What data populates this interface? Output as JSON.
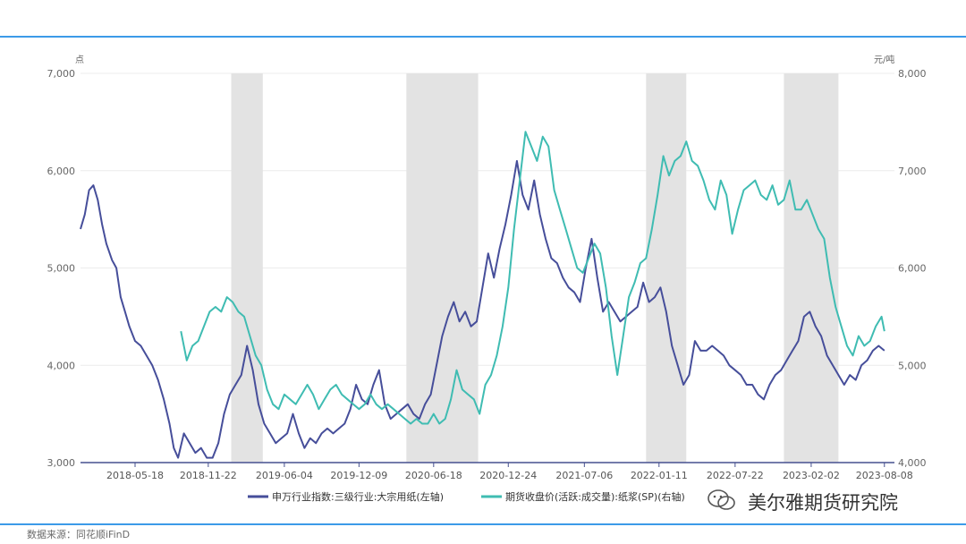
{
  "source_note": "数据来源：同花顺iFinD",
  "watermark": "美尔雅期货研究院",
  "chart_data": {
    "type": "line",
    "left_axis": {
      "unit": "点",
      "ylim": [
        3000,
        7000
      ],
      "ticks": [
        "3,000",
        "4,000",
        "5,000",
        "6,000",
        "7,000"
      ],
      "tick_values": [
        3000,
        4000,
        5000,
        6000,
        7000
      ]
    },
    "right_axis": {
      "unit": "元/吨",
      "ylim": [
        4000,
        8000
      ],
      "ticks": [
        "4,000",
        "5,000",
        "6,000",
        "7,000",
        "8,000"
      ],
      "tick_values": [
        4000,
        5000,
        6000,
        7000,
        8000
      ]
    },
    "x_ticks": [
      "2018-05-18",
      "2018-11-22",
      "2019-06-04",
      "2019-12-09",
      "2020-06-18",
      "2020-12-24",
      "2021-07-06",
      "2022-01-11",
      "2022-07-22",
      "2023-02-02",
      "2023-08-08"
    ],
    "x_tick_values": [
      2018.38,
      2018.89,
      2019.42,
      2019.94,
      2020.46,
      2020.98,
      2021.51,
      2022.03,
      2022.56,
      2023.09,
      2023.6
    ],
    "x_range": [
      2018.0,
      2023.67
    ],
    "shaded_periods": [
      [
        2019.05,
        2019.27
      ],
      [
        2020.27,
        2020.77
      ],
      [
        2021.94,
        2022.22
      ],
      [
        2022.9,
        2023.28
      ]
    ],
    "series": [
      {
        "name": "申万行业指数:三级行业:大宗用纸(左轴)",
        "axis": "left",
        "color": "#464e9a",
        "points": [
          [
            2018.0,
            5400
          ],
          [
            2018.03,
            5550
          ],
          [
            2018.06,
            5800
          ],
          [
            2018.09,
            5850
          ],
          [
            2018.12,
            5700
          ],
          [
            2018.15,
            5450
          ],
          [
            2018.18,
            5250
          ],
          [
            2018.22,
            5080
          ],
          [
            2018.25,
            5000
          ],
          [
            2018.28,
            4700
          ],
          [
            2018.31,
            4550
          ],
          [
            2018.34,
            4400
          ],
          [
            2018.38,
            4250
          ],
          [
            2018.42,
            4200
          ],
          [
            2018.46,
            4100
          ],
          [
            2018.5,
            4000
          ],
          [
            2018.54,
            3850
          ],
          [
            2018.58,
            3650
          ],
          [
            2018.62,
            3400
          ],
          [
            2018.65,
            3150
          ],
          [
            2018.68,
            3050
          ],
          [
            2018.72,
            3300
          ],
          [
            2018.76,
            3200
          ],
          [
            2018.8,
            3100
          ],
          [
            2018.84,
            3150
          ],
          [
            2018.88,
            3050
          ],
          [
            2018.92,
            3050
          ],
          [
            2018.96,
            3200
          ],
          [
            2019.0,
            3500
          ],
          [
            2019.04,
            3700
          ],
          [
            2019.08,
            3800
          ],
          [
            2019.12,
            3900
          ],
          [
            2019.16,
            4200
          ],
          [
            2019.2,
            3950
          ],
          [
            2019.24,
            3600
          ],
          [
            2019.28,
            3400
          ],
          [
            2019.32,
            3300
          ],
          [
            2019.36,
            3200
          ],
          [
            2019.4,
            3250
          ],
          [
            2019.44,
            3300
          ],
          [
            2019.48,
            3500
          ],
          [
            2019.52,
            3300
          ],
          [
            2019.56,
            3150
          ],
          [
            2019.6,
            3250
          ],
          [
            2019.64,
            3200
          ],
          [
            2019.68,
            3300
          ],
          [
            2019.72,
            3350
          ],
          [
            2019.76,
            3300
          ],
          [
            2019.8,
            3350
          ],
          [
            2019.84,
            3400
          ],
          [
            2019.88,
            3550
          ],
          [
            2019.92,
            3800
          ],
          [
            2019.96,
            3650
          ],
          [
            2020.0,
            3600
          ],
          [
            2020.04,
            3800
          ],
          [
            2020.08,
            3950
          ],
          [
            2020.12,
            3600
          ],
          [
            2020.16,
            3450
          ],
          [
            2020.2,
            3500
          ],
          [
            2020.24,
            3550
          ],
          [
            2020.28,
            3600
          ],
          [
            2020.32,
            3500
          ],
          [
            2020.36,
            3450
          ],
          [
            2020.4,
            3600
          ],
          [
            2020.44,
            3700
          ],
          [
            2020.48,
            4000
          ],
          [
            2020.52,
            4300
          ],
          [
            2020.56,
            4500
          ],
          [
            2020.6,
            4650
          ],
          [
            2020.64,
            4450
          ],
          [
            2020.68,
            4550
          ],
          [
            2020.72,
            4400
          ],
          [
            2020.76,
            4450
          ],
          [
            2020.8,
            4800
          ],
          [
            2020.84,
            5150
          ],
          [
            2020.88,
            4900
          ],
          [
            2020.92,
            5200
          ],
          [
            2020.96,
            5450
          ],
          [
            2021.0,
            5750
          ],
          [
            2021.04,
            6100
          ],
          [
            2021.08,
            5750
          ],
          [
            2021.12,
            5600
          ],
          [
            2021.16,
            5900
          ],
          [
            2021.2,
            5550
          ],
          [
            2021.24,
            5300
          ],
          [
            2021.28,
            5100
          ],
          [
            2021.32,
            5050
          ],
          [
            2021.36,
            4900
          ],
          [
            2021.4,
            4800
          ],
          [
            2021.44,
            4750
          ],
          [
            2021.48,
            4650
          ],
          [
            2021.52,
            5000
          ],
          [
            2021.56,
            5300
          ],
          [
            2021.6,
            4900
          ],
          [
            2021.64,
            4550
          ],
          [
            2021.68,
            4650
          ],
          [
            2021.72,
            4550
          ],
          [
            2021.76,
            4450
          ],
          [
            2021.8,
            4500
          ],
          [
            2021.84,
            4550
          ],
          [
            2021.88,
            4600
          ],
          [
            2021.92,
            4850
          ],
          [
            2021.96,
            4650
          ],
          [
            2022.0,
            4700
          ],
          [
            2022.04,
            4800
          ],
          [
            2022.08,
            4550
          ],
          [
            2022.12,
            4200
          ],
          [
            2022.16,
            4000
          ],
          [
            2022.2,
            3800
          ],
          [
            2022.24,
            3900
          ],
          [
            2022.28,
            4250
          ],
          [
            2022.32,
            4150
          ],
          [
            2022.36,
            4150
          ],
          [
            2022.4,
            4200
          ],
          [
            2022.44,
            4150
          ],
          [
            2022.48,
            4100
          ],
          [
            2022.52,
            4000
          ],
          [
            2022.56,
            3950
          ],
          [
            2022.6,
            3900
          ],
          [
            2022.64,
            3800
          ],
          [
            2022.68,
            3800
          ],
          [
            2022.72,
            3700
          ],
          [
            2022.76,
            3650
          ],
          [
            2022.8,
            3800
          ],
          [
            2022.84,
            3900
          ],
          [
            2022.88,
            3950
          ],
          [
            2022.92,
            4050
          ],
          [
            2022.96,
            4150
          ],
          [
            2023.0,
            4250
          ],
          [
            2023.04,
            4500
          ],
          [
            2023.08,
            4550
          ],
          [
            2023.12,
            4400
          ],
          [
            2023.16,
            4300
          ],
          [
            2023.2,
            4100
          ],
          [
            2023.24,
            4000
          ],
          [
            2023.28,
            3900
          ],
          [
            2023.32,
            3800
          ],
          [
            2023.36,
            3900
          ],
          [
            2023.4,
            3850
          ],
          [
            2023.44,
            4000
          ],
          [
            2023.48,
            4050
          ],
          [
            2023.52,
            4150
          ],
          [
            2023.56,
            4200
          ],
          [
            2023.6,
            4150
          ]
        ]
      },
      {
        "name": "期货收盘价(活跃:成交量):纸浆(SP)(右轴)",
        "axis": "right",
        "color": "#3fbcb2",
        "points": [
          [
            2018.7,
            5350
          ],
          [
            2018.74,
            5050
          ],
          [
            2018.78,
            5200
          ],
          [
            2018.82,
            5250
          ],
          [
            2018.86,
            5400
          ],
          [
            2018.9,
            5550
          ],
          [
            2018.94,
            5600
          ],
          [
            2018.98,
            5550
          ],
          [
            2019.02,
            5700
          ],
          [
            2019.06,
            5650
          ],
          [
            2019.1,
            5550
          ],
          [
            2019.14,
            5500
          ],
          [
            2019.18,
            5300
          ],
          [
            2019.22,
            5100
          ],
          [
            2019.26,
            5000
          ],
          [
            2019.3,
            4750
          ],
          [
            2019.34,
            4600
          ],
          [
            2019.38,
            4550
          ],
          [
            2019.42,
            4700
          ],
          [
            2019.46,
            4650
          ],
          [
            2019.5,
            4600
          ],
          [
            2019.54,
            4700
          ],
          [
            2019.58,
            4800
          ],
          [
            2019.62,
            4700
          ],
          [
            2019.66,
            4550
          ],
          [
            2019.7,
            4650
          ],
          [
            2019.74,
            4750
          ],
          [
            2019.78,
            4800
          ],
          [
            2019.82,
            4700
          ],
          [
            2019.86,
            4650
          ],
          [
            2019.9,
            4600
          ],
          [
            2019.94,
            4550
          ],
          [
            2019.98,
            4600
          ],
          [
            2020.02,
            4700
          ],
          [
            2020.06,
            4600
          ],
          [
            2020.1,
            4550
          ],
          [
            2020.14,
            4600
          ],
          [
            2020.18,
            4550
          ],
          [
            2020.22,
            4500
          ],
          [
            2020.26,
            4450
          ],
          [
            2020.3,
            4400
          ],
          [
            2020.34,
            4450
          ],
          [
            2020.38,
            4400
          ],
          [
            2020.42,
            4400
          ],
          [
            2020.46,
            4500
          ],
          [
            2020.5,
            4400
          ],
          [
            2020.54,
            4450
          ],
          [
            2020.58,
            4650
          ],
          [
            2020.62,
            4950
          ],
          [
            2020.66,
            4750
          ],
          [
            2020.7,
            4700
          ],
          [
            2020.74,
            4650
          ],
          [
            2020.78,
            4500
          ],
          [
            2020.82,
            4800
          ],
          [
            2020.86,
            4900
          ],
          [
            2020.9,
            5100
          ],
          [
            2020.94,
            5400
          ],
          [
            2020.98,
            5800
          ],
          [
            2021.02,
            6400
          ],
          [
            2021.06,
            6900
          ],
          [
            2021.1,
            7400
          ],
          [
            2021.14,
            7250
          ],
          [
            2021.18,
            7100
          ],
          [
            2021.22,
            7350
          ],
          [
            2021.26,
            7250
          ],
          [
            2021.3,
            6800
          ],
          [
            2021.34,
            6600
          ],
          [
            2021.38,
            6400
          ],
          [
            2021.42,
            6200
          ],
          [
            2021.46,
            6000
          ],
          [
            2021.5,
            5950
          ],
          [
            2021.54,
            6100
          ],
          [
            2021.58,
            6250
          ],
          [
            2021.62,
            6150
          ],
          [
            2021.66,
            5800
          ],
          [
            2021.7,
            5300
          ],
          [
            2021.74,
            4900
          ],
          [
            2021.78,
            5300
          ],
          [
            2021.82,
            5700
          ],
          [
            2021.86,
            5850
          ],
          [
            2021.9,
            6050
          ],
          [
            2021.94,
            6100
          ],
          [
            2021.98,
            6400
          ],
          [
            2022.02,
            6750
          ],
          [
            2022.06,
            7150
          ],
          [
            2022.1,
            6950
          ],
          [
            2022.14,
            7100
          ],
          [
            2022.18,
            7150
          ],
          [
            2022.22,
            7300
          ],
          [
            2022.26,
            7100
          ],
          [
            2022.3,
            7050
          ],
          [
            2022.34,
            6900
          ],
          [
            2022.38,
            6700
          ],
          [
            2022.42,
            6600
          ],
          [
            2022.46,
            6900
          ],
          [
            2022.5,
            6750
          ],
          [
            2022.54,
            6350
          ],
          [
            2022.58,
            6600
          ],
          [
            2022.62,
            6800
          ],
          [
            2022.66,
            6850
          ],
          [
            2022.7,
            6900
          ],
          [
            2022.74,
            6750
          ],
          [
            2022.78,
            6700
          ],
          [
            2022.82,
            6850
          ],
          [
            2022.86,
            6650
          ],
          [
            2022.9,
            6700
          ],
          [
            2022.94,
            6900
          ],
          [
            2022.98,
            6600
          ],
          [
            2023.02,
            6600
          ],
          [
            2023.06,
            6700
          ],
          [
            2023.1,
            6550
          ],
          [
            2023.14,
            6400
          ],
          [
            2023.18,
            6300
          ],
          [
            2023.22,
            5900
          ],
          [
            2023.26,
            5600
          ],
          [
            2023.3,
            5400
          ],
          [
            2023.34,
            5200
          ],
          [
            2023.38,
            5100
          ],
          [
            2023.42,
            5300
          ],
          [
            2023.46,
            5200
          ],
          [
            2023.5,
            5250
          ],
          [
            2023.54,
            5400
          ],
          [
            2023.58,
            5500
          ],
          [
            2023.6,
            5350
          ]
        ]
      }
    ]
  }
}
